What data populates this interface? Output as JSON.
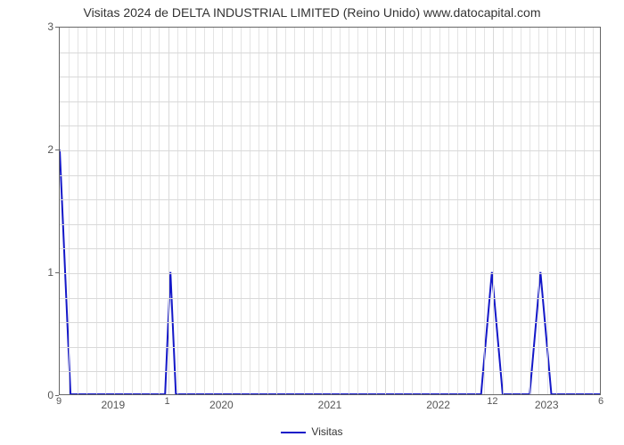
{
  "chart": {
    "type": "line",
    "title": "Visitas 2024 de DELTA INDUSTRIAL LIMITED (Reino Unido) www.datocapital.com",
    "title_fontsize": 14,
    "title_color": "#333333",
    "background_color": "#ffffff",
    "plot_border_color": "#666666",
    "grid_color": "#d9d9d9",
    "line_color": "#1418c8",
    "line_width": 2,
    "y": {
      "min": 0,
      "max": 3,
      "ticks": [
        0,
        1,
        2,
        3
      ],
      "minor_steps": 5,
      "label_color": "#555555",
      "label_fontsize": 12
    },
    "x": {
      "year_start": 2019,
      "year_end": 2024,
      "year_labels": [
        "2019",
        "2020",
        "2021",
        "2022",
        "2023"
      ],
      "label_color": "#555555",
      "label_fontsize": 12
    },
    "data_point_labels": [
      {
        "pos": 0.0,
        "text": "9"
      },
      {
        "pos": 0.2,
        "text": "1"
      },
      {
        "pos": 0.8,
        "text": "12"
      },
      {
        "pos": 1.0,
        "text": "6"
      }
    ],
    "series": {
      "name": "Visitas",
      "points": [
        {
          "x": 0.0,
          "y": 2.0
        },
        {
          "x": 0.02,
          "y": 0.0
        },
        {
          "x": 0.195,
          "y": 0.0
        },
        {
          "x": 0.205,
          "y": 1.0
        },
        {
          "x": 0.215,
          "y": 0.0
        },
        {
          "x": 0.78,
          "y": 0.0
        },
        {
          "x": 0.8,
          "y": 1.0
        },
        {
          "x": 0.82,
          "y": 0.0
        },
        {
          "x": 0.87,
          "y": 0.0
        },
        {
          "x": 0.89,
          "y": 1.0
        },
        {
          "x": 0.91,
          "y": 0.0
        },
        {
          "x": 1.0,
          "y": 0.0
        }
      ]
    },
    "legend": {
      "label": "Visitas",
      "swatch_color": "#1418c8"
    }
  }
}
